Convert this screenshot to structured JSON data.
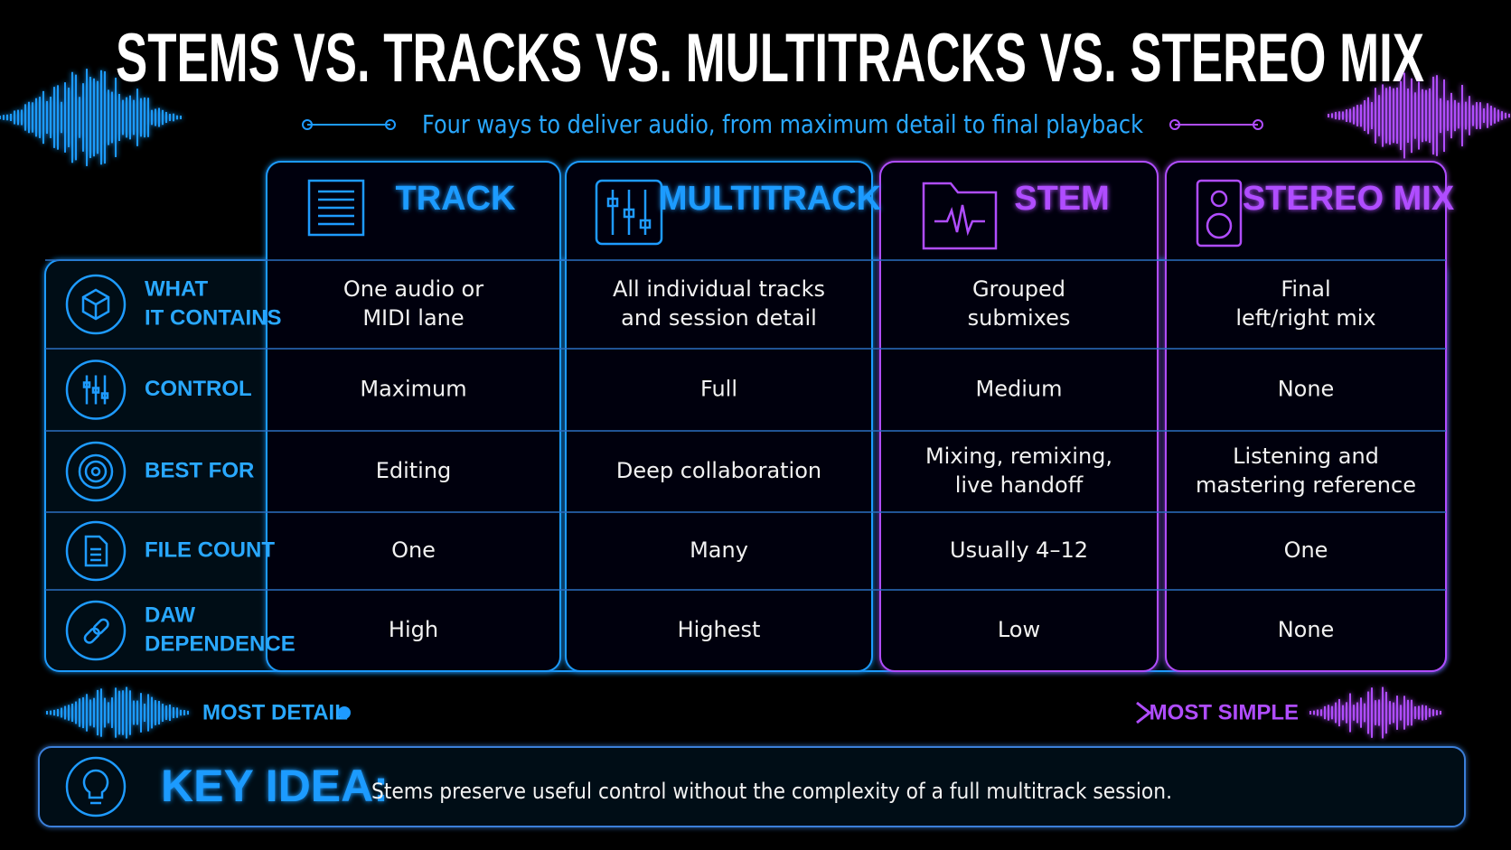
{
  "header": {
    "title": "STEMS VS. TRACKS VS. MULTITRACKS VS. STEREO MIX",
    "subtitle": "Four ways to deliver audio, from maximum detail to final playback"
  },
  "table": {
    "columns": [
      "TRACK",
      "MULTITRACK",
      "STEM",
      "STEREO MIX"
    ],
    "rows": [
      {
        "label": [
          "WHAT",
          "IT CONTAINS"
        ],
        "cells": [
          [
            "One audio or",
            "MIDI lane"
          ],
          [
            "All individual tracks",
            "and session detail"
          ],
          [
            "Grouped",
            "submixes"
          ],
          [
            "Final",
            "left/right mix"
          ]
        ]
      },
      {
        "label": [
          "CONTROL"
        ],
        "cells": [
          [
            "Maximum"
          ],
          [
            "Full"
          ],
          [
            "Medium"
          ],
          [
            "None"
          ]
        ]
      },
      {
        "label": [
          "BEST FOR"
        ],
        "cells": [
          [
            "Editing"
          ],
          [
            "Deep collaboration"
          ],
          [
            "Mixing, remixing,",
            "live handoff"
          ],
          [
            "Listening and",
            "mastering reference"
          ]
        ]
      },
      {
        "label": [
          "FILE COUNT"
        ],
        "cells": [
          [
            "One"
          ],
          [
            "Many"
          ],
          [
            "Usually 4–12"
          ],
          [
            "One"
          ]
        ]
      },
      {
        "label": [
          "DAW",
          "DEPENDENCE"
        ],
        "cells": [
          [
            "High"
          ],
          [
            "Highest"
          ],
          [
            "Low"
          ],
          [
            "None"
          ]
        ]
      }
    ]
  },
  "scale": {
    "left": "MOST DETAIL",
    "right": "MOST SIMPLE"
  },
  "key_idea": {
    "label": "KEY IDEA:",
    "text": "Stems preserve useful control without the complexity of a full multitrack session."
  }
}
